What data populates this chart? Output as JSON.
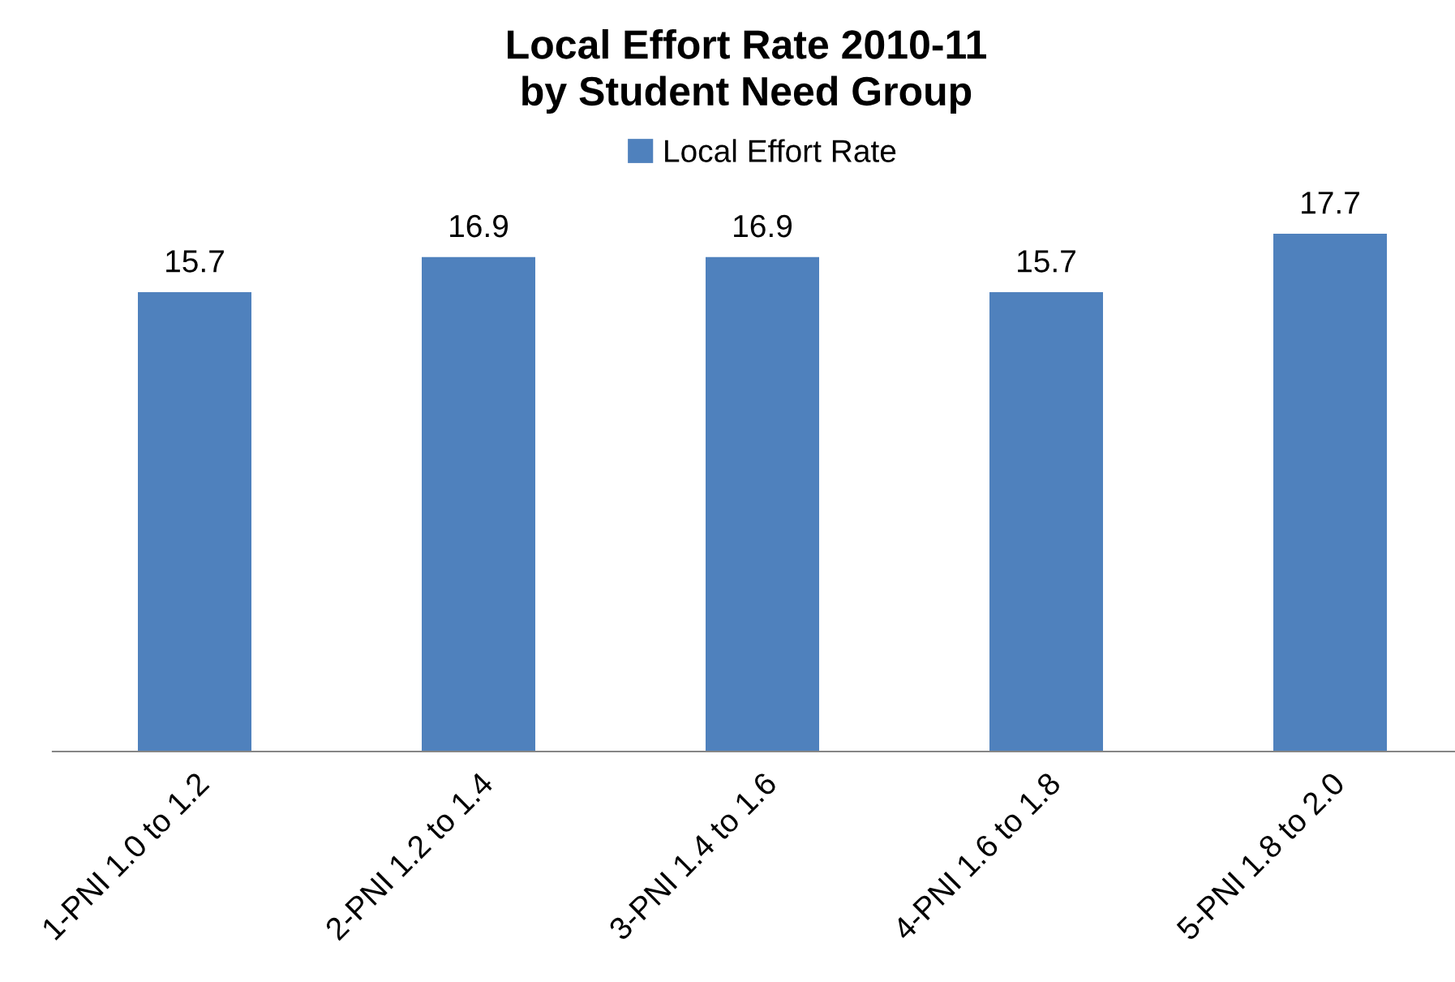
{
  "chart_data": {
    "type": "bar",
    "title": "Local Effort Rate 2010-11\nby Student Need Group",
    "categories": [
      "1-PNI 1.0 to 1.2",
      "2-PNI 1.2 to 1.4",
      "3-PNI 1.4 to 1.6",
      "4-PNI 1.6 to 1.8",
      "5-PNI 1.8 to 2.0"
    ],
    "series": [
      {
        "name": "Local Effort Rate",
        "color": "#4f81bd",
        "values": [
          15.7,
          16.9,
          16.9,
          15.7,
          17.7
        ]
      }
    ],
    "data_labels": true,
    "legend": "top",
    "tick_labels": "x"
  }
}
